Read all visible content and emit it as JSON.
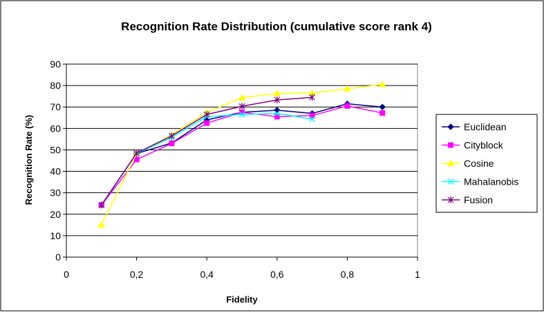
{
  "chart_data": {
    "type": "line",
    "title": "Recognition Rate Distribution (cumulative score rank 4)",
    "xlabel": "Fidelity",
    "ylabel": "Recognition Rate (%)",
    "xlim": [
      0,
      1
    ],
    "ylim": [
      0,
      90
    ],
    "x_ticks": [
      0,
      0.2,
      0.4,
      0.6,
      0.8,
      1
    ],
    "x_tick_labels": [
      "0",
      "0,2",
      "0,4",
      "0,6",
      "0,8",
      "1"
    ],
    "y_ticks": [
      0,
      10,
      20,
      30,
      40,
      50,
      60,
      70,
      80,
      90
    ],
    "y_tick_labels": [
      "0",
      "10",
      "20",
      "30",
      "40",
      "50",
      "60",
      "70",
      "80",
      "90"
    ],
    "grid": "horizontal",
    "legend_position": "right",
    "series": [
      {
        "name": "Euclidean",
        "color": "#000080",
        "marker": "diamond",
        "x": [
          0.1,
          0.2,
          0.3,
          0.4,
          0.5,
          0.6,
          0.7,
          0.8,
          0.9
        ],
        "y": [
          24.3,
          48.3,
          53.2,
          64.0,
          67.5,
          68.5,
          67.0,
          71.5,
          70.0
        ]
      },
      {
        "name": "Cityblock",
        "color": "#FF00FF",
        "marker": "square",
        "x": [
          0.1,
          0.2,
          0.3,
          0.4,
          0.5,
          0.6,
          0.7,
          0.8,
          0.9
        ],
        "y": [
          24.3,
          45.5,
          53.0,
          62.5,
          67.5,
          65.5,
          66.0,
          70.5,
          67.2
        ]
      },
      {
        "name": "Cosine",
        "color": "#FFFF00",
        "marker": "triangle",
        "x": [
          0.1,
          0.2,
          0.3,
          0.4,
          0.5,
          0.6,
          0.7,
          0.8,
          0.9
        ],
        "y": [
          15.0,
          48.3,
          57.0,
          67.5,
          74.3,
          76.3,
          76.5,
          78.5,
          80.5
        ]
      },
      {
        "name": "Mahalanobis",
        "color": "#00FFFF",
        "marker": "x",
        "x": [
          0.1,
          0.2,
          0.3,
          0.4,
          0.5,
          0.6,
          0.7
        ],
        "y": [
          24.3,
          48.3,
          55.8,
          65.5,
          66.5,
          67.0,
          64.3
        ]
      },
      {
        "name": "Fusion",
        "color": "#800080",
        "marker": "asterisk",
        "x": [
          0.1,
          0.2,
          0.3,
          0.4,
          0.5,
          0.6,
          0.7
        ],
        "y": [
          24.3,
          48.5,
          56.5,
          66.5,
          70.3,
          73.3,
          74.5
        ]
      }
    ]
  }
}
